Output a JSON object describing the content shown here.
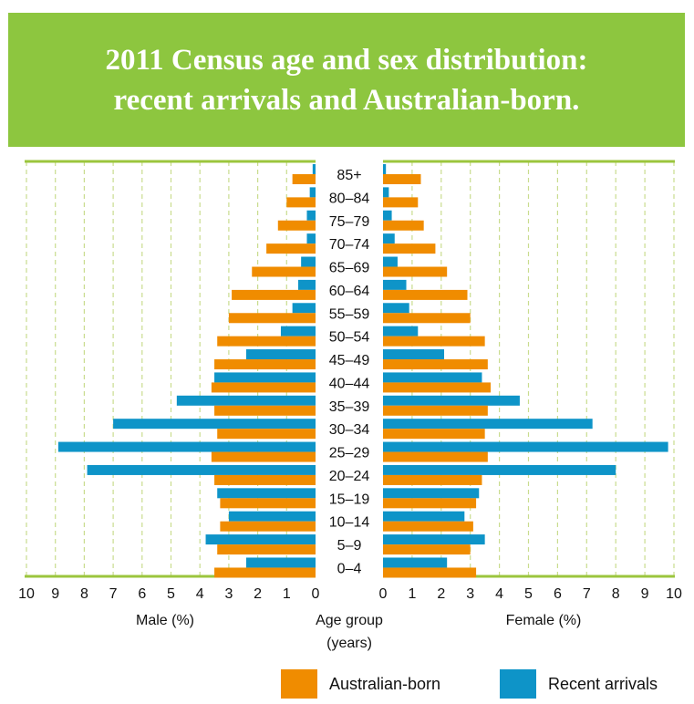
{
  "colors": {
    "banner": "#8dc63f",
    "australian_born": "#f08c00",
    "recent_arrivals": "#0e94c8",
    "grid": "#c9dc8e",
    "axis": "#9bc53d"
  },
  "chart_data": {
    "type": "bar",
    "title": "2011 Census age and sex distribution: recent arrivals and Australian-born.",
    "categories": [
      "85+",
      "80–84",
      "75–79",
      "70–74",
      "65–69",
      "60–64",
      "55–59",
      "50–54",
      "45–49",
      "40–44",
      "35–39",
      "30–34",
      "25–29",
      "20–24",
      "15–19",
      "10–14",
      "5–9",
      "0–4"
    ],
    "center_label": "Age group (years)",
    "center_label_lines": [
      "Age group",
      "(years)"
    ],
    "male": {
      "axis_label": "Male (%)",
      "xlim": [
        0,
        10
      ],
      "ticks": [
        "10",
        "9",
        "8",
        "7",
        "6",
        "5",
        "4",
        "3",
        "2",
        "1",
        "0"
      ],
      "series": [
        {
          "name": "Recent arrivals",
          "values": [
            0.1,
            0.2,
            0.3,
            0.3,
            0.5,
            0.6,
            0.8,
            1.2,
            2.4,
            3.5,
            4.8,
            7.0,
            8.9,
            7.9,
            3.4,
            3.0,
            3.8,
            2.4
          ]
        },
        {
          "name": "Australian-born",
          "values": [
            0.8,
            1.0,
            1.3,
            1.7,
            2.2,
            2.9,
            3.0,
            3.4,
            3.5,
            3.6,
            3.5,
            3.4,
            3.6,
            3.5,
            3.3,
            3.3,
            3.4,
            3.5
          ]
        }
      ]
    },
    "female": {
      "axis_label": "Female (%)",
      "xlim": [
        0,
        10
      ],
      "ticks": [
        "0",
        "1",
        "2",
        "3",
        "4",
        "5",
        "6",
        "7",
        "8",
        "9",
        "10"
      ],
      "series": [
        {
          "name": "Recent arrivals",
          "values": [
            0.1,
            0.2,
            0.3,
            0.4,
            0.5,
            0.8,
            0.9,
            1.2,
            2.1,
            3.4,
            4.7,
            7.2,
            9.8,
            8.0,
            3.3,
            2.8,
            3.5,
            2.2
          ]
        },
        {
          "name": "Australian-born",
          "values": [
            1.3,
            1.2,
            1.4,
            1.8,
            2.2,
            2.9,
            3.0,
            3.5,
            3.6,
            3.7,
            3.6,
            3.5,
            3.6,
            3.4,
            3.2,
            3.1,
            3.0,
            3.2
          ]
        }
      ]
    },
    "legend": [
      "Australian-born",
      "Recent arrivals"
    ],
    "legend_position": "bottom-right",
    "grid": true
  }
}
